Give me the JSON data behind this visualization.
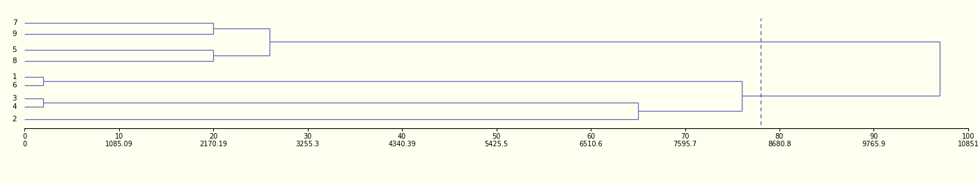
{
  "genotypes": [
    "7",
    "9",
    "5",
    "8",
    "1",
    "6",
    "3",
    "4",
    "2"
  ],
  "line_color": "#6666bb",
  "bg_color": "#fffff0",
  "dashed_line_x": 78.0,
  "dashed_line_color": "#444488",
  "x_ticks": [
    0,
    10,
    20,
    30,
    40,
    50,
    60,
    70,
    80,
    90,
    100
  ],
  "x_tick_labels_top": [
    "0",
    "10",
    "20",
    "30",
    "40",
    "50",
    "60",
    "70",
    "80",
    "90",
    "100"
  ],
  "x_tick_labels_bottom": [
    "0",
    "1085.09",
    "2170.19",
    "3255.3",
    "4340.39",
    "5425.5",
    "6510.6",
    "7595.7",
    "8680.8",
    "9765.9",
    "10851"
  ],
  "leaf_y": {
    "7": 8,
    "9": 7,
    "5": 6,
    "8": 5,
    "1": 3,
    "6": 2,
    "3": 1,
    "4": 0,
    "2": -1.5
  },
  "c1_dist": 20.0,
  "c2_dist": 20.0,
  "c3_dist": 26.0,
  "c4_dist": 2.0,
  "c5_dist": 2.0,
  "c6_dist": 65.0,
  "c7_dist": 76.0,
  "c8_dist": 97.0,
  "xmin": 0,
  "xmax": 100,
  "label_fontsize": 7.5,
  "tick_fontsize": 7
}
